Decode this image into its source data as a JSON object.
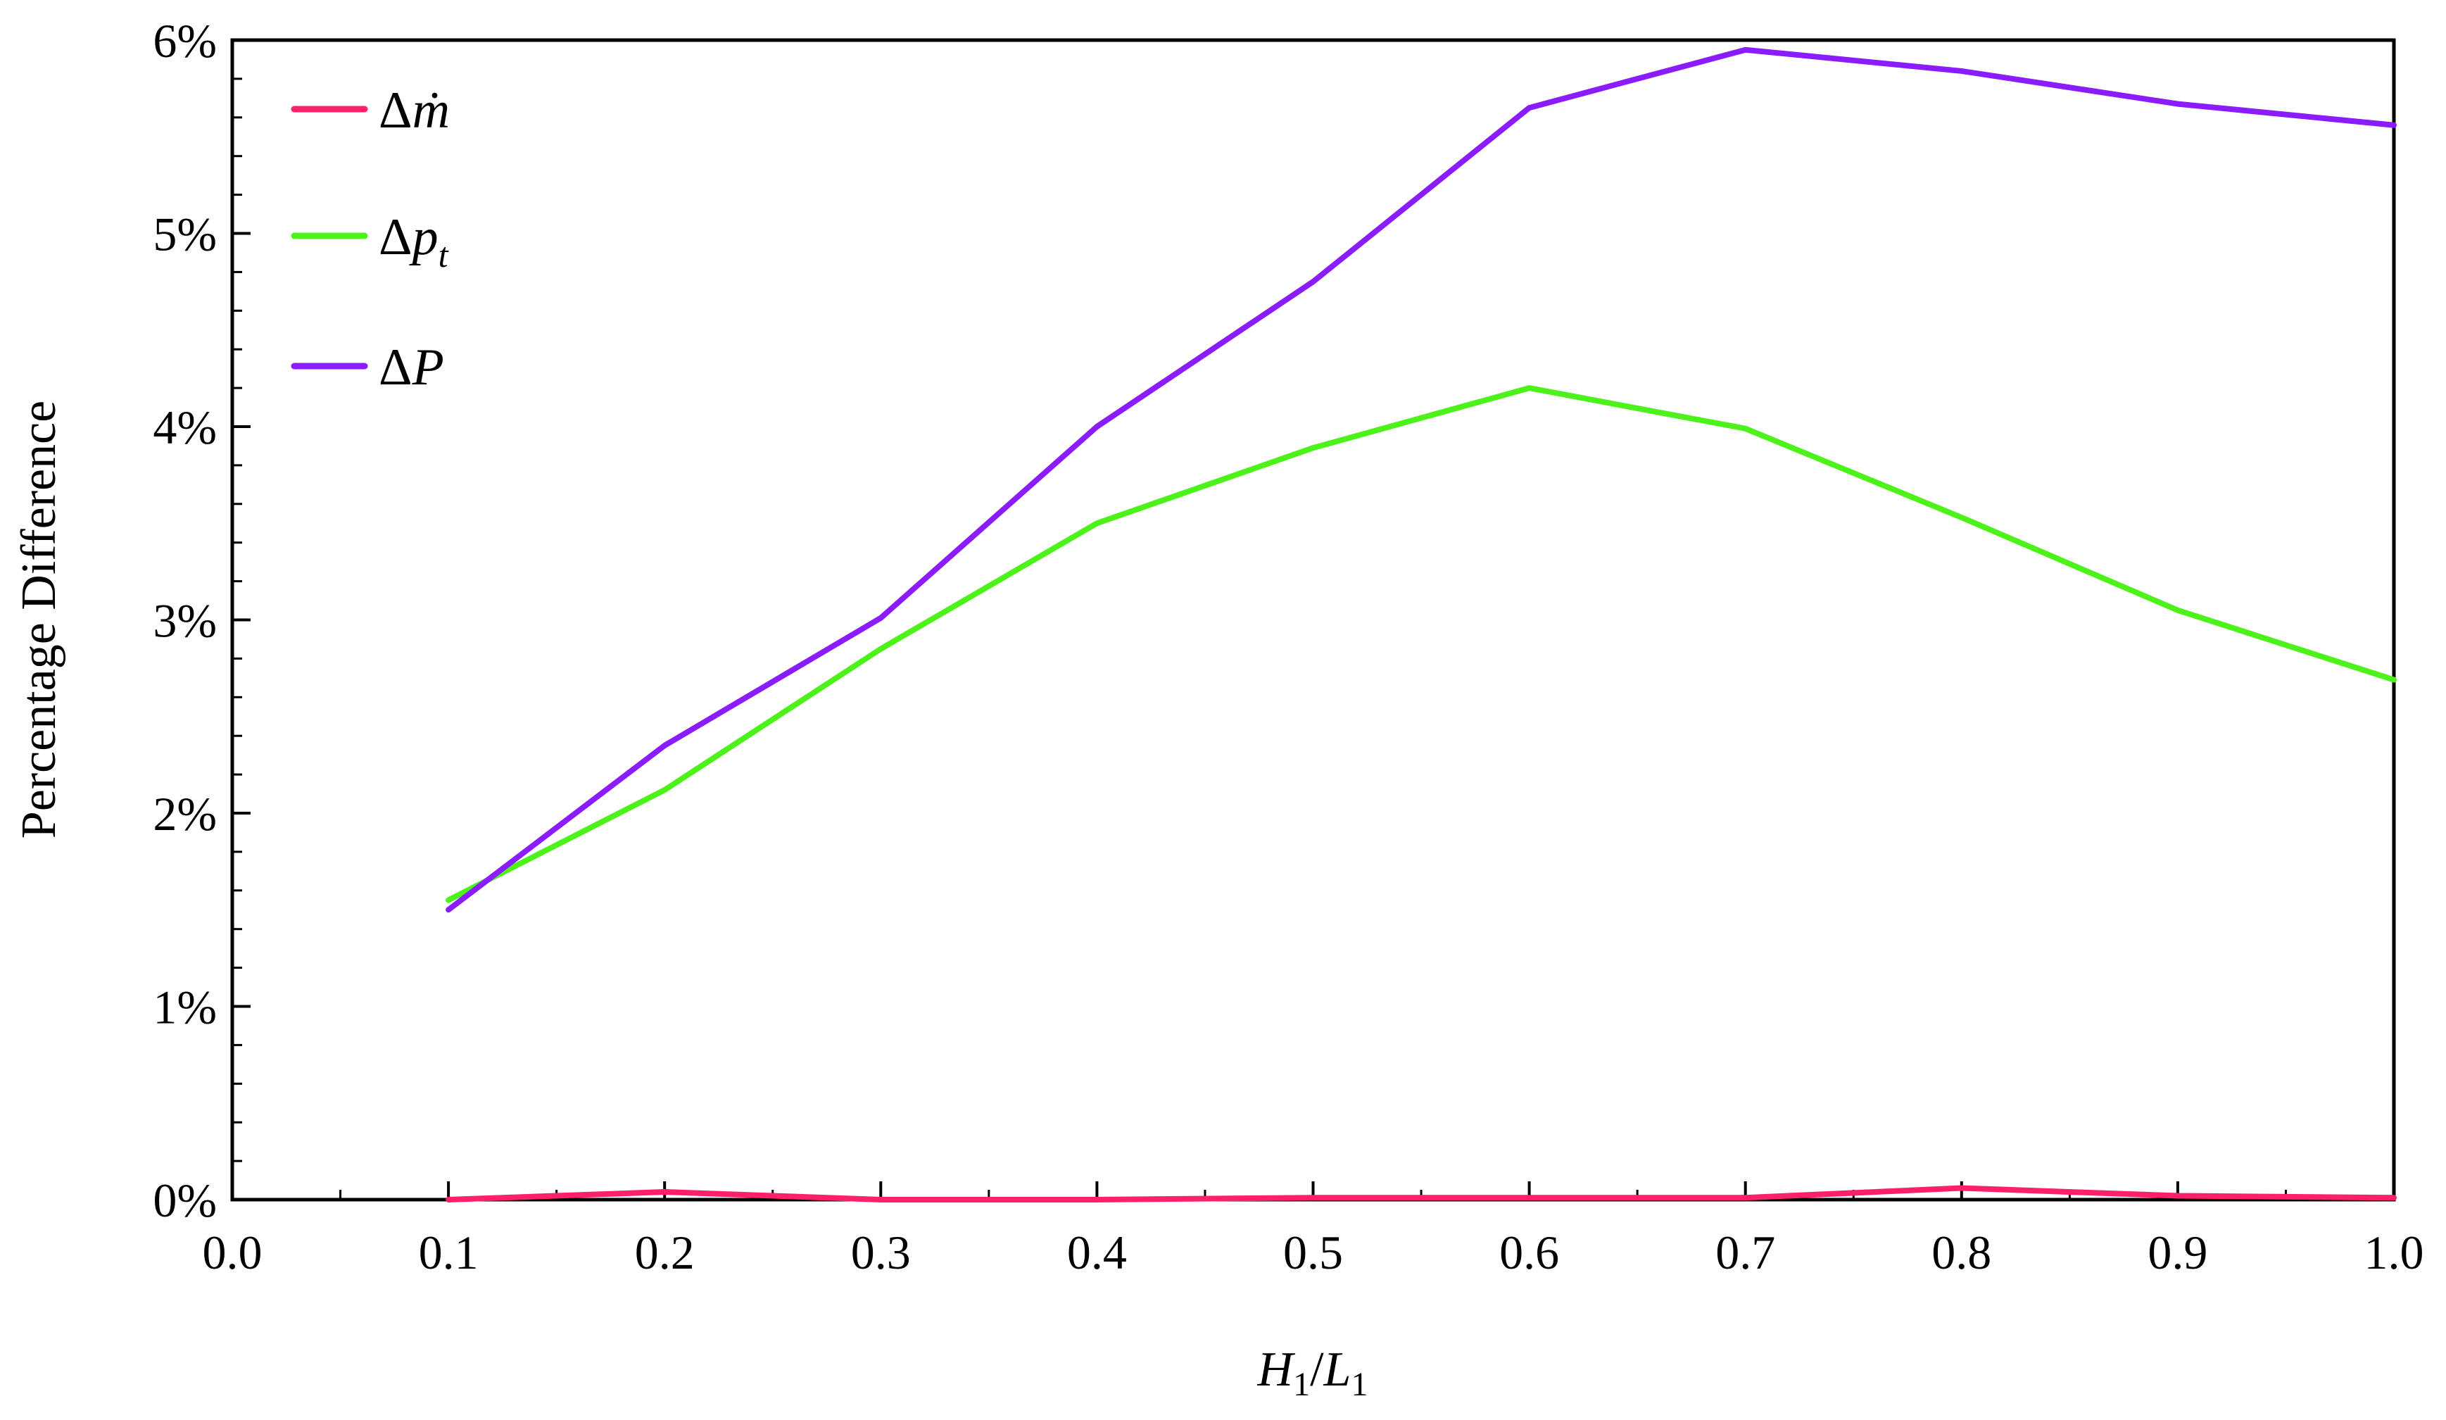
{
  "chart_data": {
    "type": "line",
    "xlabel": {
      "main": "H",
      "sub1": "1",
      "sep": "/",
      "main2": "L",
      "sub2": "1"
    },
    "ylabel": "Percentage Difference",
    "xlim": [
      0,
      1
    ],
    "ylim": [
      0,
      6
    ],
    "x_ticks": [
      "0.0",
      "0.1",
      "0.2",
      "0.3",
      "0.4",
      "0.5",
      "0.6",
      "0.7",
      "0.8",
      "0.9",
      "1.0"
    ],
    "y_ticks": [
      "0%",
      "1%",
      "2%",
      "3%",
      "4%",
      "5%",
      "6%"
    ],
    "x": [
      0.1,
      0.2,
      0.3,
      0.4,
      0.5,
      0.6,
      0.7,
      0.8,
      0.9,
      1.0
    ],
    "series": [
      {
        "name": "Δṁ",
        "legend": {
          "delta": "Δ",
          "sym": "ṁ",
          "sub": ""
        },
        "color": "#ff1f6b",
        "values": [
          0.0,
          0.04,
          0.0,
          0.0,
          0.01,
          0.01,
          0.01,
          0.06,
          0.02,
          0.01
        ]
      },
      {
        "name": "Δpt",
        "legend": {
          "delta": "Δ",
          "sym": "p",
          "sub": "t"
        },
        "color": "#4cf21a",
        "values": [
          1.55,
          2.12,
          2.85,
          3.5,
          3.89,
          4.2,
          3.99,
          3.53,
          3.05,
          2.69
        ]
      },
      {
        "name": "ΔP",
        "legend": {
          "delta": "Δ",
          "sym": "P",
          "sub": ""
        },
        "color": "#8a1cff",
        "values": [
          1.5,
          2.35,
          3.01,
          4.0,
          4.75,
          5.65,
          5.95,
          5.84,
          5.67,
          5.56
        ]
      }
    ],
    "legend_position": "top-left",
    "grid": false
  }
}
